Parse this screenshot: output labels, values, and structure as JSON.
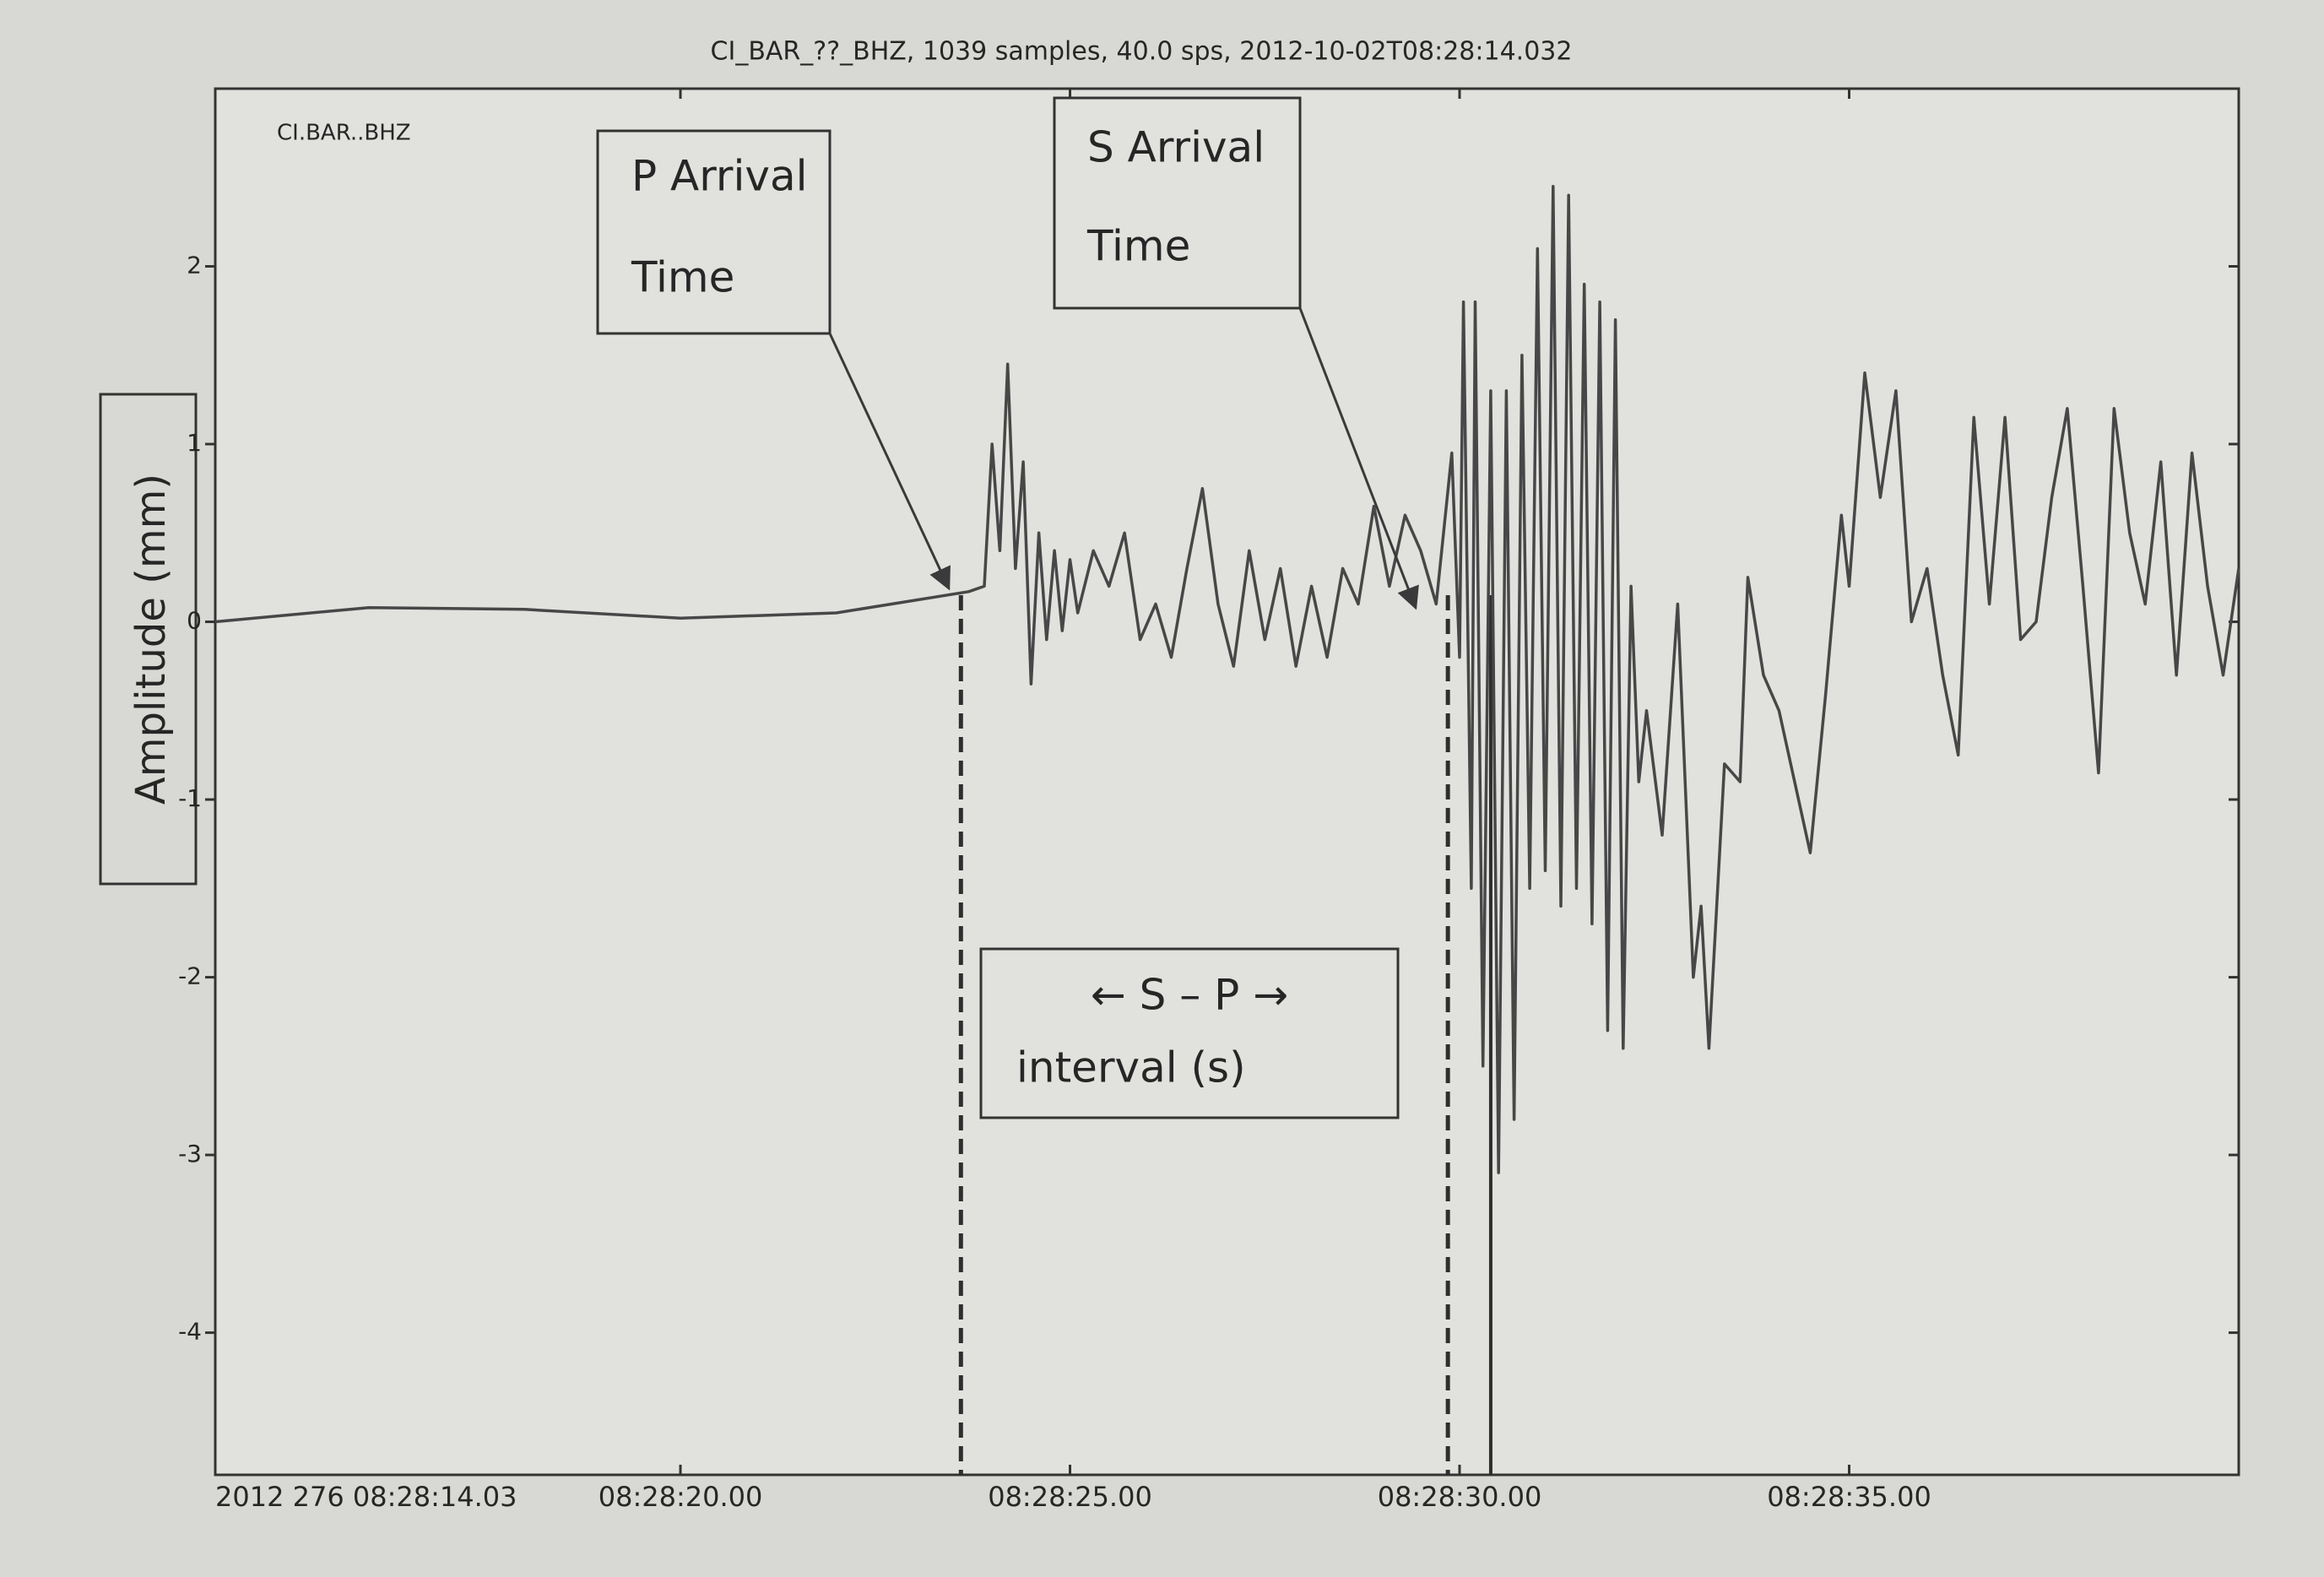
{
  "chart_data": {
    "type": "line",
    "title": "CI_BAR_??_BHZ, 1039 samples, 40.0 sps, 2012-10-02T08:28:14.032",
    "trace_label": "CI.BAR..BHZ",
    "y_label": "Amplitude (mm)",
    "annotations": {
      "p_arrival": [
        "P Arrival",
        "Time"
      ],
      "s_arrival": [
        "S Arrival",
        "Time"
      ],
      "interval": [
        "← S – P →",
        "interval (s)"
      ]
    },
    "vlines": [
      {
        "x": 23.6,
        "style": "dashed"
      },
      {
        "x": 29.85,
        "style": "dashed"
      },
      {
        "x": 30.4,
        "style": "solid"
      }
    ],
    "xlim": [
      14.03,
      40.0
    ],
    "ylim": [
      -4.8,
      3.0
    ],
    "xticks": [
      {
        "value": 14.03,
        "label": "2012 276 08:28:14.03"
      },
      {
        "value": 20,
        "label": "08:28:20.00"
      },
      {
        "value": 25,
        "label": "08:28:25.00"
      },
      {
        "value": 30,
        "label": "08:28:30.00"
      },
      {
        "value": 35,
        "label": "08:28:35.00"
      }
    ],
    "yticks": [
      -4,
      -3,
      -2,
      -1,
      0,
      1,
      2
    ],
    "color": "#474747",
    "x": [
      14.03,
      16,
      18,
      20,
      22,
      23.7,
      23.9,
      24.0,
      24.1,
      24.2,
      24.3,
      24.4,
      24.5,
      24.6,
      24.7,
      24.8,
      24.9,
      25.0,
      25.1,
      25.3,
      25.5,
      25.7,
      25.9,
      26.1,
      26.3,
      26.5,
      26.7,
      26.9,
      27.1,
      27.3,
      27.5,
      27.7,
      27.9,
      28.1,
      28.3,
      28.5,
      28.7,
      28.9,
      29.1,
      29.3,
      29.5,
      29.7,
      29.9,
      30.0,
      30.05,
      30.15,
      30.2,
      30.3,
      30.4,
      30.5,
      30.6,
      30.7,
      30.8,
      30.9,
      31.0,
      31.1,
      31.2,
      31.3,
      31.4,
      31.5,
      31.6,
      31.7,
      31.8,
      31.9,
      32.0,
      32.1,
      32.2,
      32.3,
      32.4,
      32.6,
      32.8,
      33.0,
      33.1,
      33.2,
      33.4,
      33.6,
      33.7,
      33.9,
      34.1,
      34.3,
      34.5,
      34.7,
      34.9,
      35.0,
      35.2,
      35.4,
      35.6,
      35.8,
      36.0,
      36.2,
      36.4,
      36.6,
      36.8,
      37.0,
      37.2,
      37.4,
      37.6,
      37.8,
      38.0,
      38.2,
      38.4,
      38.6,
      38.8,
      39.0,
      39.2,
      39.4,
      39.6,
      39.8,
      40.0
    ],
    "values": [
      0,
      0.08,
      0.07,
      0.02,
      0.05,
      0.17,
      0.2,
      1.0,
      0.4,
      1.45,
      0.3,
      0.9,
      -0.35,
      0.5,
      -0.1,
      0.4,
      -0.05,
      0.35,
      0.05,
      0.4,
      0.2,
      0.5,
      -0.1,
      0.1,
      -0.2,
      0.3,
      0.75,
      0.1,
      -0.25,
      0.4,
      -0.1,
      0.3,
      -0.25,
      0.2,
      -0.2,
      0.3,
      0.1,
      0.65,
      0.2,
      0.6,
      0.4,
      0.1,
      0.95,
      -0.2,
      1.8,
      -1.5,
      1.8,
      -2.5,
      1.3,
      -3.1,
      1.3,
      -2.8,
      1.5,
      -1.5,
      2.1,
      -1.4,
      2.45,
      -1.6,
      2.4,
      -1.5,
      1.9,
      -1.7,
      1.8,
      -2.3,
      1.7,
      -2.4,
      0.2,
      -0.9,
      -0.5,
      -1.2,
      0.1,
      -2.0,
      -1.6,
      -2.4,
      -0.8,
      -0.9,
      0.25,
      -0.3,
      -0.5,
      -0.9,
      -1.3,
      -0.4,
      0.6,
      0.2,
      1.4,
      0.7,
      1.3,
      0,
      0.3,
      -0.3,
      -0.75,
      1.15,
      0.1,
      1.15,
      -0.1,
      0,
      0.7,
      1.2,
      0.2,
      -0.85,
      1.2,
      0.5,
      0.1,
      0.9,
      -0.3,
      0.95,
      0.2,
      -0.3,
      0.3
    ]
  }
}
